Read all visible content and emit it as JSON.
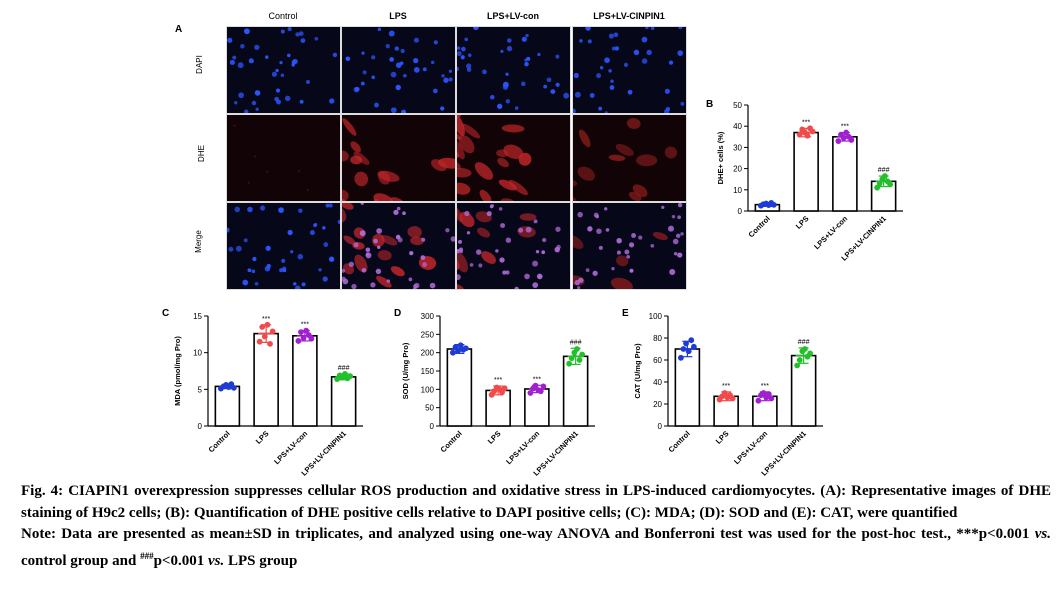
{
  "figure": {
    "panel_a_letter": "A",
    "columns": [
      "Control",
      "LPS",
      "LPS+LV-con",
      "LPS+LV-CINPIN1"
    ],
    "rows": [
      "DAPI",
      "DHE",
      "Merge"
    ],
    "colors": {
      "control": "#1f3bd6",
      "lps": "#f04a4a",
      "lvcon": "#a020d0",
      "cinpin": "#22c02a",
      "dapi_bg": "#06081a",
      "dhe_bg": "#120406"
    }
  },
  "chart_data": [
    {
      "id": "B",
      "letter": "B",
      "type": "bar",
      "categories": [
        "Control",
        "LPS",
        "LPS+LV-con",
        "LPS+LV-CINPIN1"
      ],
      "values": [
        3,
        37,
        35,
        14
      ],
      "errors": [
        0.8,
        2,
        2,
        2.5
      ],
      "points": [
        [
          2.5,
          3.2,
          3.5,
          2.8,
          3.8,
          2.9
        ],
        [
          36,
          38.5,
          37,
          35.5,
          39,
          37.5
        ],
        [
          33,
          36,
          34.5,
          37,
          35,
          33.5
        ],
        [
          11,
          13,
          15,
          16.5,
          14,
          12.5
        ]
      ],
      "significance": [
        "",
        "***",
        "***",
        "###"
      ],
      "ylabel": "DHE+ cells (%)",
      "ylim": [
        0,
        50
      ],
      "yticks": [
        0,
        10,
        20,
        30,
        40,
        50
      ]
    },
    {
      "id": "C",
      "letter": "C",
      "type": "bar",
      "categories": [
        "Control",
        "LPS",
        "LPS+LV-con",
        "LPS+LV-CINPIN1"
      ],
      "values": [
        5.4,
        12.6,
        12.3,
        6.7
      ],
      "errors": [
        0.3,
        1.2,
        0.7,
        0.4
      ],
      "points": [
        [
          5.1,
          5.4,
          5.6,
          5.3,
          5.7,
          5.2
        ],
        [
          11.5,
          13.5,
          12.2,
          13.8,
          11.2,
          12.9
        ],
        [
          11.6,
          12.8,
          12.0,
          13.0,
          12.4,
          11.9
        ],
        [
          6.4,
          6.9,
          6.6,
          7.1,
          6.5,
          6.8
        ]
      ],
      "significance": [
        "",
        "***",
        "***",
        "###"
      ],
      "ylabel": "MDA (pmol/mg Pro)",
      "ylim": [
        0,
        15
      ],
      "yticks": [
        0,
        5,
        10,
        15
      ]
    },
    {
      "id": "D",
      "letter": "D",
      "type": "bar",
      "categories": [
        "Control",
        "LPS",
        "LPS+LV-con",
        "LPS+LV-CINPIN1"
      ],
      "values": [
        210,
        97,
        101,
        190
      ],
      "errors": [
        12,
        12,
        10,
        22
      ],
      "points": [
        [
          200,
          215,
          205,
          220,
          208,
          212
        ],
        [
          85,
          95,
          105,
          100,
          92,
          103
        ],
        [
          90,
          102,
          110,
          98,
          95,
          108
        ],
        [
          170,
          185,
          200,
          210,
          180,
          195
        ]
      ],
      "significance": [
        "",
        "***",
        "***",
        "###"
      ],
      "ylabel": "SOD (U/mg Pro)",
      "ylim": [
        0,
        300
      ],
      "yticks": [
        0,
        50,
        100,
        150,
        200,
        250,
        300
      ]
    },
    {
      "id": "E",
      "letter": "E",
      "type": "bar",
      "categories": [
        "Control",
        "LPS",
        "LPS+LV-con",
        "LPS+LV-CINPIN1"
      ],
      "values": [
        70,
        27,
        27,
        64
      ],
      "errors": [
        7,
        4,
        4,
        7
      ],
      "points": [
        [
          62,
          70,
          75,
          68,
          78,
          72
        ],
        [
          24,
          27,
          30,
          26,
          28,
          25
        ],
        [
          23,
          28,
          30,
          26,
          29,
          25
        ],
        [
          55,
          60,
          68,
          70,
          63,
          66
        ]
      ],
      "significance": [
        "",
        "***",
        "***",
        "###"
      ],
      "ylabel": "CAT (U/mg Pro)",
      "ylim": [
        0,
        100
      ],
      "yticks": [
        0,
        20,
        40,
        60,
        80,
        100
      ]
    }
  ],
  "caption": {
    "line1": "Fig. 4: CIAPIN1 overexpression suppresses cellular ROS production and oxidative stress in LPS-induced cardiomyocytes. (A): Representative images of DHE staining of H9c2 cells; (B): Quantification of DHE positive cells relative to DAPI positive cells; (C): MDA; (D): SOD and (E): CAT, were quantified",
    "note_before_vs1": "Note: Data are presented as mean±SD in triplicates, and analyzed using one-way ANOVA and Bonferroni test was used for the post-hoc test., ***p<0.001 ",
    "vs1": "vs.",
    "note_between": " control group and ",
    "superscript": "###",
    "note_p": "p<0.001 ",
    "vs2": "vs.",
    "note_end": " LPS group"
  }
}
